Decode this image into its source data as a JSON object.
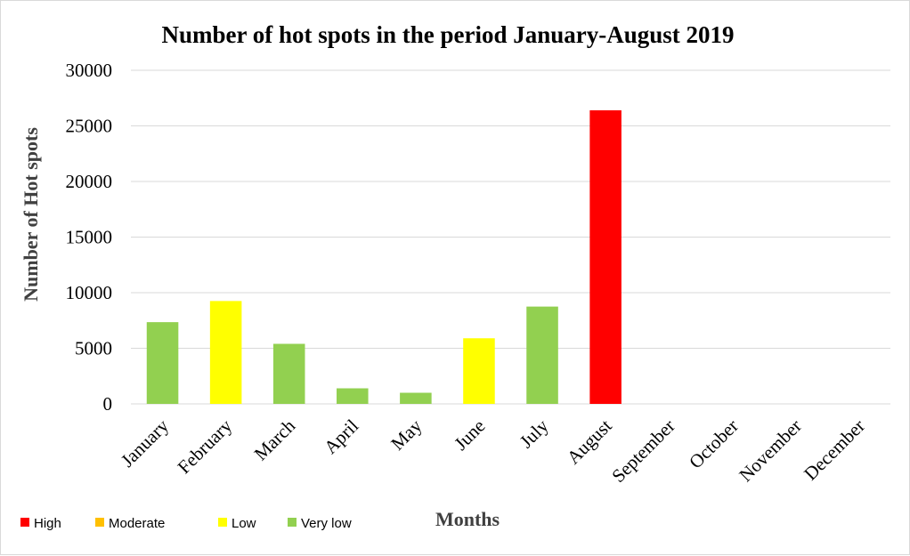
{
  "chart_data": {
    "type": "bar",
    "title": "Number of hot spots in the period January-August  2019",
    "xlabel": "Months",
    "ylabel": "Number of Hot  spots",
    "ylim": [
      0,
      30000
    ],
    "yticks": [
      "0",
      "5000",
      "10000",
      "15000",
      "20000",
      "25000",
      "30000"
    ],
    "categories": [
      "January",
      "February",
      "March",
      "April",
      "May",
      "June",
      "July",
      "August",
      "September",
      "October",
      "November",
      "December"
    ],
    "values": [
      7350,
      9250,
      5400,
      1400,
      1000,
      5900,
      8750,
      26400,
      null,
      null,
      null,
      null
    ],
    "levels": [
      "Very low",
      "Low",
      "Very low",
      "Very low",
      "Very low",
      "Low",
      "Very low",
      "High",
      null,
      null,
      null,
      null
    ],
    "grid": true,
    "legend_placement": "bottom-left",
    "legend": [
      {
        "label": "High",
        "color": "#FF0000"
      },
      {
        "label": "Moderate",
        "color": "#FFC000"
      },
      {
        "label": "Low",
        "color": "#FFFF00"
      },
      {
        "label": "Very low",
        "color": "#92D050"
      }
    ]
  }
}
